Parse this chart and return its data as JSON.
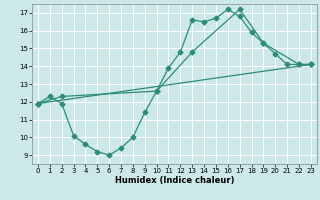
{
  "xlabel": "Humidex (Indice chaleur)",
  "bg_color": "#cce8e8",
  "line_color": "#2e8b7a",
  "grid_color": "#ffffff",
  "ylim": [
    8.5,
    17.5
  ],
  "xlim": [
    -0.5,
    23.5
  ],
  "yticks": [
    9,
    10,
    11,
    12,
    13,
    14,
    15,
    16,
    17
  ],
  "xticks": [
    0,
    1,
    2,
    3,
    4,
    5,
    6,
    7,
    8,
    9,
    10,
    11,
    12,
    13,
    14,
    15,
    16,
    17,
    18,
    19,
    20,
    21,
    22,
    23
  ],
  "line1_x": [
    0,
    1,
    2,
    3,
    4,
    5,
    6,
    7,
    8,
    9,
    10,
    11,
    12,
    13,
    14,
    15,
    16,
    17,
    18,
    19,
    20,
    21,
    22,
    23
  ],
  "line1_y": [
    11.9,
    12.3,
    11.9,
    10.1,
    9.6,
    9.2,
    9.0,
    9.4,
    10.0,
    11.4,
    12.6,
    13.9,
    14.8,
    16.6,
    16.5,
    16.7,
    17.2,
    16.8,
    15.9,
    15.3,
    14.7,
    14.1,
    14.1,
    14.1
  ],
  "line2_x": [
    0,
    2,
    10,
    13,
    17,
    19,
    22,
    23
  ],
  "line2_y": [
    11.9,
    12.3,
    12.6,
    14.8,
    17.2,
    15.3,
    14.1,
    14.1
  ],
  "line3_x": [
    0,
    23
  ],
  "line3_y": [
    11.9,
    14.1
  ]
}
